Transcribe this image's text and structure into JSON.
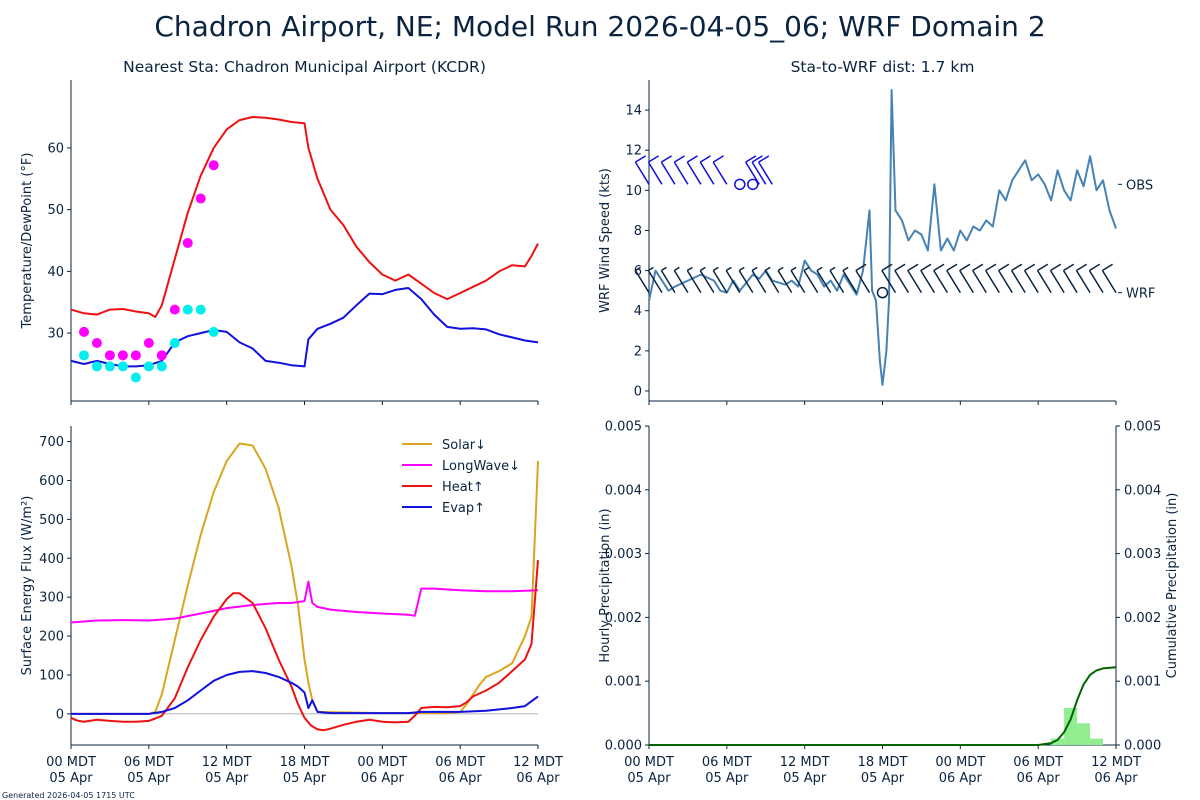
{
  "title": "Chadron Airport, NE; Model Run 2026-04-05_06; WRF Domain 2",
  "footer": "Generated 2026-04-05 1715 UTC",
  "x_ticks": [
    {
      "hour": 0,
      "l1": "00 MDT",
      "l2": "05 Apr"
    },
    {
      "hour": 6,
      "l1": "06 MDT",
      "l2": "05 Apr"
    },
    {
      "hour": 12,
      "l1": "12 MDT",
      "l2": "05 Apr"
    },
    {
      "hour": 18,
      "l1": "18 MDT",
      "l2": "05 Apr"
    },
    {
      "hour": 24,
      "l1": "00 MDT",
      "l2": "06 Apr"
    },
    {
      "hour": 30,
      "l1": "06 MDT",
      "l2": "06 Apr"
    },
    {
      "hour": 36,
      "l1": "12 MDT",
      "l2": "06 Apr"
    }
  ],
  "colors": {
    "temp_model": "#ee1111",
    "dew_model": "#1111dd",
    "temp_obs": "#ff00ff",
    "dew_obs": "#00eeee",
    "solar": "#daa520",
    "longwave": "#ff00ff",
    "heat": "#ee1111",
    "evap": "#1111dd",
    "wind": "#4682b4",
    "barb_obs": "#1111dd",
    "barb_wrf": "#0a2440",
    "precip_bar": "#90ee90",
    "precip_cum": "#006400"
  },
  "chart_data": [
    {
      "id": "temperature",
      "type": "line",
      "title": "Nearest Sta: Chadron Municipal Airport (KCDR)",
      "xlabel": "",
      "ylabel": "Temperature/DewPoint (°F)",
      "xlim": [
        0,
        36
      ],
      "ylim": [
        19,
        71
      ],
      "yticks": [
        30,
        40,
        50,
        60
      ],
      "series": [
        {
          "key": "temp_model",
          "x": [
            0,
            1,
            2,
            3,
            4,
            5,
            6,
            6.5,
            7,
            8,
            9,
            10,
            11,
            12,
            13,
            14,
            15,
            16,
            17,
            18,
            18.3,
            19,
            20,
            21,
            22,
            23,
            24,
            25,
            26,
            27,
            28,
            29,
            30,
            31,
            32,
            33,
            34,
            35,
            35.5,
            36
          ],
          "values": [
            33.8,
            33.2,
            33.0,
            33.8,
            33.9,
            33.5,
            33.2,
            32.6,
            34.5,
            42.0,
            49.5,
            55.5,
            60.0,
            63.0,
            64.5,
            65.0,
            64.9,
            64.6,
            64.2,
            64.0,
            60.0,
            55.0,
            50.0,
            47.5,
            44.0,
            41.5,
            39.5,
            38.5,
            39.5,
            38.0,
            36.5,
            35.5,
            36.5,
            37.5,
            38.5,
            40.0,
            41.0,
            40.8,
            42.5,
            44.5
          ]
        },
        {
          "key": "dew_model",
          "x": [
            0,
            1,
            2,
            3,
            4,
            5,
            6,
            7,
            8,
            9,
            10,
            11,
            12,
            13,
            14,
            15,
            16,
            17,
            18,
            18.3,
            19,
            20,
            21,
            22,
            23,
            24,
            25,
            26,
            27,
            28,
            29,
            30,
            31,
            32,
            33,
            34,
            35,
            36
          ],
          "values": [
            25.5,
            25.0,
            25.5,
            25.0,
            24.6,
            24.6,
            24.8,
            25.5,
            28.5,
            29.5,
            30.0,
            30.5,
            30.2,
            28.5,
            27.5,
            25.5,
            25.2,
            24.8,
            24.6,
            29.0,
            30.7,
            31.5,
            32.5,
            34.5,
            36.4,
            36.3,
            37.0,
            37.3,
            35.5,
            33.0,
            31.0,
            30.7,
            30.8,
            30.6,
            29.8,
            29.3,
            28.8,
            28.5
          ]
        }
      ],
      "scatter": [
        {
          "key": "temp_obs",
          "x": [
            1,
            2,
            3,
            4,
            5,
            6,
            7,
            8,
            9,
            10,
            11
          ],
          "values": [
            30.2,
            28.4,
            26.4,
            26.4,
            26.4,
            28.4,
            26.4,
            33.8,
            44.6,
            51.8,
            57.2
          ]
        },
        {
          "key": "dew_obs",
          "x": [
            1,
            2,
            3,
            4,
            5,
            6,
            7,
            8,
            9,
            10,
            11
          ],
          "values": [
            26.4,
            24.6,
            24.6,
            24.6,
            22.8,
            24.6,
            24.6,
            28.4,
            33.8,
            33.8,
            30.2
          ]
        }
      ]
    },
    {
      "id": "wind",
      "type": "line",
      "title": "Sta-to-WRF dist: 1.7 km",
      "xlabel": "",
      "ylabel": "WRF Wind Speed (kts)",
      "xlim": [
        0,
        36
      ],
      "ylim": [
        -0.5,
        15.5
      ],
      "yticks": [
        0,
        2,
        4,
        6,
        8,
        10,
        12,
        14
      ],
      "barb_labels": [
        {
          "text": "OBS",
          "y": 10.3
        },
        {
          "text": "WRF",
          "y": 4.9
        }
      ],
      "series": [
        {
          "key": "wind",
          "x": [
            0,
            0.5,
            1,
            1.5,
            2,
            3,
            4,
            5,
            5.5,
            6,
            6.5,
            7,
            8,
            8.5,
            9,
            9.5,
            10,
            10.5,
            11,
            11.5,
            12,
            12.5,
            13,
            13.5,
            14,
            14.5,
            15,
            15.5,
            16,
            16.5,
            17,
            17.2,
            17.5,
            17.8,
            18,
            18.3,
            18.5,
            18.7,
            19,
            19.5,
            20,
            20.5,
            21,
            21.5,
            22,
            22.5,
            23,
            23.5,
            24,
            24.5,
            25,
            25.5,
            26,
            26.5,
            27,
            27.5,
            28,
            28.5,
            29,
            29.5,
            30,
            30.5,
            31,
            31.5,
            32,
            32.5,
            33,
            33.5,
            34,
            34.5,
            35,
            35.5,
            36
          ],
          "values": [
            4.5,
            6.0,
            5.5,
            5.0,
            5.2,
            5.5,
            5.8,
            5.5,
            5.0,
            4.9,
            5.5,
            5.0,
            5.8,
            5.6,
            6.0,
            5.5,
            5.4,
            5.3,
            5.5,
            5.2,
            6.5,
            6.0,
            5.8,
            5.2,
            5.5,
            5.0,
            5.8,
            5.3,
            4.8,
            6.0,
            9.0,
            5.0,
            4.5,
            1.5,
            0.3,
            2.0,
            4.5,
            15.0,
            9.0,
            8.5,
            7.5,
            8.0,
            7.8,
            7.0,
            10.3,
            7.0,
            7.6,
            7.0,
            8.0,
            7.5,
            8.2,
            8.0,
            8.5,
            8.2,
            10.0,
            9.5,
            10.5,
            11.0,
            11.5,
            10.5,
            10.8,
            10.3,
            9.5,
            11.0,
            10.0,
            9.5,
            11.0,
            10.2,
            11.7,
            10.0,
            10.5,
            9.0,
            8.1
          ]
        }
      ],
      "obs_barbs": [
        {
          "x": 0,
          "speed": 9
        },
        {
          "x": 1,
          "speed": 9
        },
        {
          "x": 2,
          "speed": 9
        },
        {
          "x": 3,
          "speed": 9
        },
        {
          "x": 4,
          "speed": 9
        },
        {
          "x": 5,
          "speed": 9
        },
        {
          "x": 6,
          "speed": 9
        },
        {
          "x": 7,
          "speed": 0
        },
        {
          "x": 8,
          "speed": 0
        },
        {
          "x": 8.5,
          "speed": 11
        },
        {
          "x": 9,
          "speed": 11
        },
        {
          "x": 9.5,
          "speed": 11
        }
      ],
      "wrf_barbs": [
        {
          "x": 0,
          "speed": 4
        },
        {
          "x": 1,
          "speed": 5
        },
        {
          "x": 2,
          "speed": 5
        },
        {
          "x": 3,
          "speed": 5
        },
        {
          "x": 4,
          "speed": 6
        },
        {
          "x": 5,
          "speed": 6
        },
        {
          "x": 6,
          "speed": 5
        },
        {
          "x": 7,
          "speed": 6
        },
        {
          "x": 8,
          "speed": 5
        },
        {
          "x": 9,
          "speed": 6
        },
        {
          "x": 10,
          "speed": 5
        },
        {
          "x": 11,
          "speed": 6
        },
        {
          "x": 12,
          "speed": 6
        },
        {
          "x": 13,
          "speed": 6
        },
        {
          "x": 14,
          "speed": 5
        },
        {
          "x": 15,
          "speed": 6
        },
        {
          "x": 16,
          "speed": 7
        },
        {
          "x": 17,
          "speed": 8
        },
        {
          "x": 18,
          "speed": 0
        },
        {
          "x": 19,
          "speed": 9
        },
        {
          "x": 20,
          "speed": 8
        },
        {
          "x": 21,
          "speed": 8
        },
        {
          "x": 22,
          "speed": 10
        },
        {
          "x": 23,
          "speed": 8
        },
        {
          "x": 24,
          "speed": 8
        },
        {
          "x": 25,
          "speed": 8
        },
        {
          "x": 26,
          "speed": 9
        },
        {
          "x": 27,
          "speed": 10
        },
        {
          "x": 28,
          "speed": 11
        },
        {
          "x": 29,
          "speed": 11
        },
        {
          "x": 30,
          "speed": 11
        },
        {
          "x": 31,
          "speed": 10
        },
        {
          "x": 32,
          "speed": 10
        },
        {
          "x": 33,
          "speed": 10
        },
        {
          "x": 34,
          "speed": 11
        },
        {
          "x": 35,
          "speed": 10
        },
        {
          "x": 36,
          "speed": 8
        }
      ]
    },
    {
      "id": "energy",
      "type": "line",
      "title": "",
      "xlabel": "",
      "ylabel": "Surface Energy Flux (W/m²)",
      "xlim": [
        0,
        36
      ],
      "ylim": [
        -80,
        740
      ],
      "yticks": [
        0,
        100,
        200,
        300,
        400,
        500,
        600,
        700
      ],
      "zero_line": true,
      "legend_position": "top-right",
      "series": [
        {
          "key": "solar",
          "name": "Solar↓",
          "x": [
            0,
            5,
            6,
            6.5,
            7,
            8,
            9,
            10,
            11,
            12,
            13,
            14,
            15,
            16,
            17,
            17.5,
            18,
            18.3,
            18.6,
            19,
            24,
            29,
            30,
            30.5,
            31,
            31.5,
            32,
            33,
            34,
            35,
            35.5,
            36
          ],
          "values": [
            0,
            0,
            0,
            5,
            50,
            190,
            330,
            460,
            570,
            650,
            695,
            690,
            630,
            530,
            380,
            280,
            140,
            80,
            35,
            5,
            2,
            2,
            5,
            25,
            50,
            75,
            95,
            110,
            130,
            200,
            250,
            650
          ]
        },
        {
          "key": "longwave",
          "name": "LongWave↓",
          "x": [
            0,
            2,
            4,
            6,
            8,
            10,
            12,
            14,
            16,
            17,
            18,
            18.3,
            18.6,
            19,
            20,
            22,
            24,
            26,
            26.5,
            27,
            28,
            30,
            32,
            34,
            36
          ],
          "values": [
            235,
            240,
            241,
            240,
            245,
            258,
            272,
            280,
            285,
            285,
            290,
            340,
            285,
            275,
            268,
            262,
            258,
            255,
            252,
            322,
            322,
            318,
            315,
            315,
            318
          ]
        },
        {
          "key": "heat",
          "name": "Heat↑",
          "x": [
            0,
            0.3,
            0.6,
            1,
            2,
            3,
            4,
            5,
            6,
            6.5,
            7,
            8,
            9,
            10,
            11,
            12,
            12.5,
            13,
            14,
            15,
            16,
            17,
            17.5,
            18,
            18.5,
            19,
            19.5,
            20,
            21,
            22,
            23,
            24,
            25,
            26,
            26.5,
            27,
            28,
            29,
            30,
            30.5,
            31,
            32,
            33,
            34,
            35,
            35.5,
            36
          ],
          "values": [
            -10,
            -15,
            -18,
            -20,
            -15,
            -18,
            -20,
            -20,
            -18,
            -12,
            -5,
            40,
            120,
            190,
            250,
            295,
            310,
            310,
            285,
            220,
            140,
            70,
            25,
            -10,
            -30,
            -40,
            -42,
            -38,
            -28,
            -20,
            -15,
            -20,
            -22,
            -20,
            -5,
            15,
            18,
            17,
            20,
            30,
            45,
            60,
            80,
            110,
            140,
            180,
            395
          ]
        },
        {
          "key": "evap",
          "name": "Evap↑",
          "x": [
            0,
            2,
            4,
            6,
            7,
            8,
            9,
            10,
            11,
            12,
            13,
            14,
            15,
            16,
            17,
            17.5,
            18,
            18.3,
            18.6,
            19,
            20,
            22,
            24,
            26,
            27,
            28,
            30,
            32,
            34,
            35,
            36
          ],
          "values": [
            0,
            0,
            0,
            0,
            5,
            15,
            35,
            60,
            85,
            100,
            108,
            110,
            105,
            95,
            80,
            70,
            55,
            15,
            35,
            5,
            2,
            2,
            2,
            2,
            5,
            5,
            5,
            8,
            15,
            20,
            45
          ]
        }
      ]
    },
    {
      "id": "precip",
      "type": "bar",
      "title": "",
      "xlabel": "",
      "ylabel": "Hourly Precipitation (in)",
      "ylabel_right": "Cumulative Precipitation (in)",
      "xlim": [
        0,
        36
      ],
      "ylim": [
        0,
        0.005
      ],
      "yticks": [
        0,
        0.001,
        0.002,
        0.003,
        0.004,
        0.005
      ],
      "ytick_labels": [
        "0.000",
        "0.001",
        "0.002",
        "0.003",
        "0.004",
        "0.005"
      ],
      "bars": {
        "key": "precip_bar",
        "x": [
          31.5,
          32.5,
          33.5,
          34.5
        ],
        "width": 1,
        "values": [
          0.0001,
          0.00058,
          0.00034,
          0.0001
        ]
      },
      "series": [
        {
          "key": "precip_cum",
          "x": [
            0,
            30,
            31,
            31.5,
            32,
            32.5,
            33,
            33.5,
            34,
            34.5,
            35,
            36
          ],
          "values": [
            0,
            0,
            3e-05,
            8e-05,
            0.0002,
            0.0004,
            0.0007,
            0.00095,
            0.0011,
            0.00117,
            0.0012,
            0.00122
          ]
        }
      ]
    }
  ]
}
